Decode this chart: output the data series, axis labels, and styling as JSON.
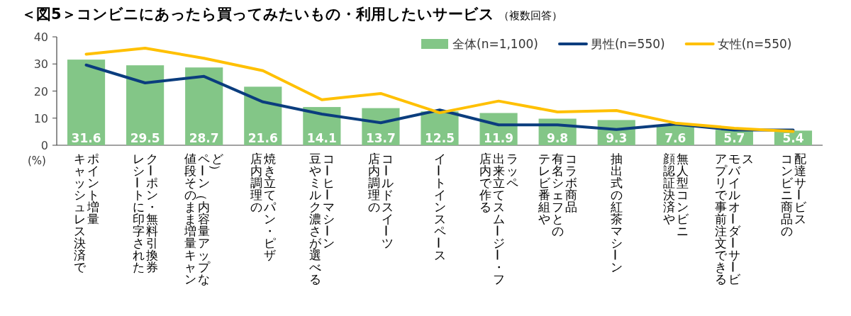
{
  "chart_data": {
    "type": "bar",
    "title": "＜図5＞コンビニにあったら買ってみたいもの・利用したいサービス",
    "subtitle": "（複数回答）",
    "ylabel": "(%)",
    "categories": [
      "キャッシュレス決済でポイント増量",
      "レシートに印字されたクーポン・無料引換券",
      "値段そのまま増量キャンペーン（内容量アップなど）",
      "店内調理の焼き立てパン・ピザ",
      "豆やミルク濃さが選べるコーヒーマシーン",
      "店内調理のコールドスイーツ",
      "イートインスペース",
      "店内で作る出来立てスムージー・フラッペ",
      "テレビ番組や有名シェフとのコラボ商品",
      "抽出式の紅茶マシーン",
      "顔認証決済や無人型コンビニ",
      "アプリで事前注文できるモバイルオーダーサービス",
      "コンビニ商品の配達サービス"
    ],
    "series": [
      {
        "name": "全体(n=1,100)",
        "color": "#83c687",
        "values": [
          31.6,
          29.5,
          28.7,
          21.6,
          14.1,
          13.7,
          12.5,
          11.9,
          9.8,
          9.3,
          7.6,
          5.7,
          5.4
        ],
        "value_labels": [
          "31.6",
          "29.5",
          "28.7",
          "21.6",
          "14.1",
          "13.7",
          "12.5",
          "11.9",
          "9.8",
          "9.3",
          "7.6",
          "5.7",
          "5.4"
        ]
      },
      {
        "name": "男性(n=550)",
        "type": "line",
        "color": "#0b3d7e",
        "values": [
          29.6,
          23.0,
          25.4,
          16.0,
          11.5,
          8.3,
          13.0,
          7.5,
          7.5,
          5.8,
          7.8,
          5.6,
          5.6
        ]
      },
      {
        "name": "女性(n=550)",
        "type": "line",
        "color": "#ffc000",
        "values": [
          33.6,
          35.8,
          32.1,
          27.5,
          16.8,
          19.1,
          12.0,
          16.3,
          12.3,
          12.8,
          8.2,
          6.3,
          5.1
        ]
      }
    ],
    "ylim": [
      0,
      40
    ],
    "yticks": [
      0,
      10,
      20,
      30,
      40
    ],
    "grid": false,
    "legend": "top right",
    "marker": "none",
    "line_style": "solid"
  }
}
